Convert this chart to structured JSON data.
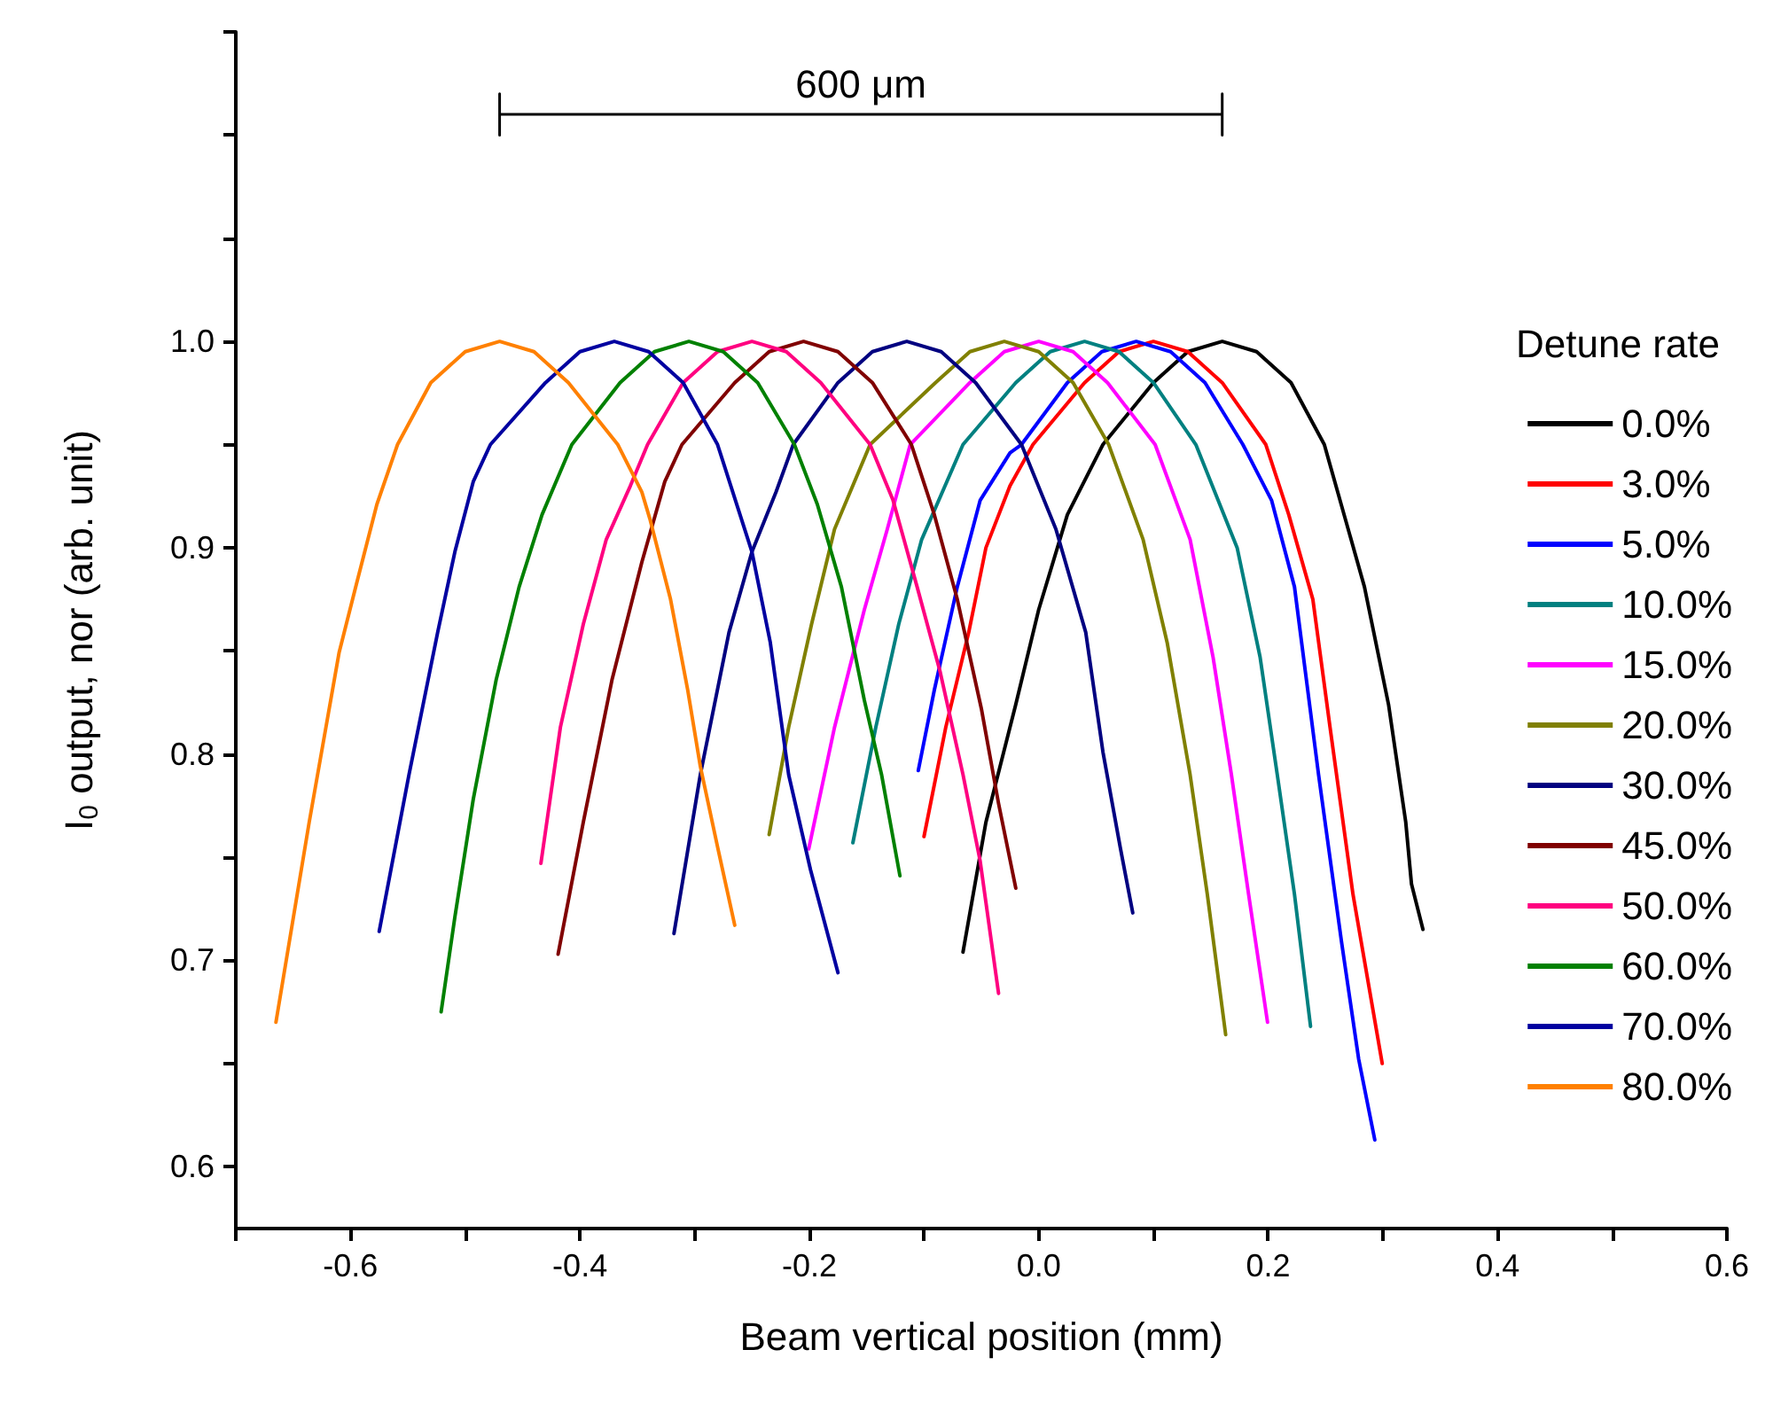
{
  "chart_data": {
    "type": "line",
    "xlabel": "Beam vertical position (mm)",
    "ylabel": "I$_{0}$ output, nor (arb. unit)",
    "legend_title": "Detune rate",
    "legend": "right",
    "annotations": [
      {
        "text": "600 μm",
        "x": -0.155,
        "y": 1.11
      }
    ],
    "xlim": [
      -0.7,
      0.6
    ],
    "xticks": [
      {
        "value": -0.7,
        "label": null
      },
      -0.6,
      {
        "value": -0.5,
        "label": null
      },
      -0.4,
      {
        "value": -0.3,
        "label": null
      },
      -0.2,
      {
        "value": -0.1,
        "label": null
      },
      {
        "value": 0,
        "label": "0.0"
      },
      {
        "value": 0.1,
        "label": null
      },
      0.2,
      {
        "value": 0.3,
        "label": null
      },
      0.4,
      {
        "value": 0.5,
        "label": null
      },
      0.6
    ],
    "ylim": [
      0.57,
      1.15
    ],
    "yticks": [
      0.6,
      {
        "value": 0.65,
        "label": null
      },
      0.7,
      {
        "value": 0.75,
        "label": null
      },
      0.8,
      {
        "value": 0.85,
        "label": null
      },
      0.9,
      {
        "value": 0.95,
        "label": null
      },
      {
        "value": 1.0,
        "label": "1.0"
      },
      {
        "value": 1.05,
        "label": null
      },
      {
        "value": 1.1,
        "label": null
      },
      {
        "value": 1.15,
        "label": null
      }
    ],
    "series": [
      {
        "name": "0.0%",
        "color": "#000000",
        "x": [
          -0.066,
          -0.046,
          -0.02,
          0.0,
          0.025,
          0.056,
          0.1,
          0.13,
          0.16,
          0.19,
          0.22,
          0.249,
          0.284,
          0.305,
          0.32,
          0.325,
          0.335
        ],
        "values": [
          0.704,
          0.767,
          0.824,
          0.87,
          0.916,
          0.95,
          0.98,
          0.995,
          1.0,
          0.995,
          0.98,
          0.95,
          0.881,
          0.824,
          0.767,
          0.737,
          0.715
        ]
      },
      {
        "name": "3.0%",
        "color": "#ff0000",
        "x": [
          -0.1,
          -0.081,
          -0.061,
          -0.046,
          -0.025,
          -0.005,
          0.04,
          0.07,
          0.1,
          0.13,
          0.16,
          0.198,
          0.218,
          0.239,
          0.254,
          0.274,
          0.2995
        ],
        "values": [
          0.76,
          0.813,
          0.859,
          0.9,
          0.93,
          0.95,
          0.98,
          0.995,
          1.0,
          0.995,
          0.98,
          0.95,
          0.916,
          0.875,
          0.813,
          0.732,
          0.65
        ]
      },
      {
        "name": "5.0%",
        "color": "#0000ff",
        "x": [
          -0.105,
          -0.091,
          -0.071,
          -0.051,
          -0.025,
          -0.015,
          0.025,
          0.055,
          0.085,
          0.115,
          0.145,
          0.178,
          0.203,
          0.223,
          0.244,
          0.264,
          0.279,
          0.293
        ],
        "values": [
          0.792,
          0.831,
          0.881,
          0.923,
          0.946,
          0.95,
          0.98,
          0.995,
          1.0,
          0.995,
          0.98,
          0.95,
          0.923,
          0.881,
          0.79,
          0.709,
          0.652,
          0.613
        ]
      },
      {
        "name": "10.0%",
        "color": "#008080",
        "x": [
          -0.162,
          -0.142,
          -0.122,
          -0.102,
          -0.066,
          -0.02,
          0.01,
          0.04,
          0.07,
          0.1,
          0.137,
          0.173,
          0.193,
          0.208,
          0.223,
          0.237
        ],
        "values": [
          0.757,
          0.813,
          0.863,
          0.904,
          0.95,
          0.98,
          0.995,
          1.0,
          0.995,
          0.98,
          0.95,
          0.9,
          0.847,
          0.79,
          0.732,
          0.668
        ]
      },
      {
        "name": "15.0%",
        "color": "#ff00ff",
        "x": [
          -0.2005,
          -0.178,
          -0.152,
          -0.132,
          -0.112,
          -0.06,
          -0.03,
          0.0,
          0.03,
          0.06,
          0.1015,
          0.132,
          0.152,
          0.168,
          0.183,
          0.1995
        ],
        "values": [
          0.754,
          0.813,
          0.87,
          0.909,
          0.95,
          0.98,
          0.995,
          1.0,
          0.995,
          0.98,
          0.95,
          0.904,
          0.847,
          0.79,
          0.732,
          0.67
        ]
      },
      {
        "name": "20.0%",
        "color": "#808000",
        "x": [
          -0.235,
          -0.218,
          -0.198,
          -0.178,
          -0.147,
          -0.09,
          -0.06,
          -0.03,
          0.0,
          0.03,
          0.061,
          0.091,
          0.112,
          0.132,
          0.147,
          0.163
        ],
        "values": [
          0.761,
          0.813,
          0.863,
          0.909,
          0.95,
          0.98,
          0.995,
          1.0,
          0.995,
          0.98,
          0.95,
          0.904,
          0.854,
          0.79,
          0.732,
          0.664
        ]
      },
      {
        "name": "30.0%",
        "color": "#000080",
        "x": [
          -0.318,
          -0.295,
          -0.27,
          -0.25,
          -0.229,
          -0.214,
          -0.175,
          -0.145,
          -0.115,
          -0.085,
          -0.055,
          -0.015,
          0.015,
          0.041,
          0.056,
          0.071,
          0.082
        ],
        "values": [
          0.713,
          0.79,
          0.859,
          0.898,
          0.927,
          0.95,
          0.98,
          0.995,
          1.0,
          0.995,
          0.98,
          0.95,
          0.909,
          0.859,
          0.801,
          0.755,
          0.723
        ]
      },
      {
        "name": "45.0%",
        "color": "#800000",
        "x": [
          -0.419,
          -0.397,
          -0.372,
          -0.346,
          -0.326,
          -0.311,
          -0.265,
          -0.235,
          -0.205,
          -0.175,
          -0.145,
          -0.111,
          -0.091,
          -0.071,
          -0.05,
          -0.035,
          -0.02
        ],
        "values": [
          0.703,
          0.767,
          0.836,
          0.893,
          0.932,
          0.95,
          0.98,
          0.995,
          1.0,
          0.995,
          0.98,
          0.95,
          0.916,
          0.875,
          0.822,
          0.776,
          0.735
        ]
      },
      {
        "name": "50.0%",
        "color": "#ff0080",
        "x": [
          -0.434,
          -0.417,
          -0.397,
          -0.377,
          -0.356,
          -0.341,
          -0.31,
          -0.28,
          -0.25,
          -0.22,
          -0.19,
          -0.147,
          -0.127,
          -0.106,
          -0.086,
          -0.066,
          -0.051,
          -0.035
        ],
        "values": [
          0.747,
          0.813,
          0.863,
          0.904,
          0.93,
          0.95,
          0.98,
          0.995,
          1.0,
          0.995,
          0.98,
          0.95,
          0.923,
          0.881,
          0.84,
          0.79,
          0.748,
          0.684
        ]
      },
      {
        "name": "60.0%",
        "color": "#008000",
        "x": [
          -0.521,
          -0.509,
          -0.493,
          -0.473,
          -0.453,
          -0.433,
          -0.407,
          -0.365,
          -0.335,
          -0.305,
          -0.275,
          -0.245,
          -0.213,
          -0.193,
          -0.172,
          -0.152,
          -0.137,
          -0.121
        ],
        "values": [
          0.675,
          0.721,
          0.778,
          0.836,
          0.881,
          0.916,
          0.95,
          0.98,
          0.995,
          1.0,
          0.995,
          0.98,
          0.95,
          0.921,
          0.881,
          0.826,
          0.79,
          0.741
        ]
      },
      {
        "name": "70.0%",
        "color": "#0000a0",
        "x": [
          -0.575,
          -0.549,
          -0.524,
          -0.509,
          -0.493,
          -0.478,
          -0.43,
          -0.4,
          -0.37,
          -0.34,
          -0.31,
          -0.28,
          -0.25,
          -0.234,
          -0.218,
          -0.199,
          -0.175
        ],
        "values": [
          0.714,
          0.79,
          0.859,
          0.898,
          0.932,
          0.95,
          0.98,
          0.995,
          1.0,
          0.995,
          0.98,
          0.95,
          0.898,
          0.854,
          0.79,
          0.744,
          0.694
        ]
      },
      {
        "color": "#000000",
        "x": [
          -0.47,
          -0.47,
          -0.47,
          0.16,
          0.16,
          0.16
        ],
        "values": [
          1.12,
          1.1,
          1.11,
          1.11,
          1.12,
          1.1
        ]
      },
      {
        "name": "80.0%",
        "color": "#ff8000",
        "x": [
          -0.665,
          -0.636,
          -0.61,
          -0.595,
          -0.577,
          -0.559,
          -0.53,
          -0.5,
          -0.47,
          -0.44,
          -0.41,
          -0.367,
          -0.346,
          -0.339,
          -0.321,
          -0.306,
          -0.295,
          -0.28,
          -0.265
        ],
        "values": [
          0.67,
          0.767,
          0.849,
          0.882,
          0.921,
          0.95,
          0.98,
          0.995,
          1.0,
          0.995,
          0.98,
          0.95,
          0.927,
          0.914,
          0.875,
          0.831,
          0.794,
          0.755,
          0.717
        ]
      }
    ]
  }
}
